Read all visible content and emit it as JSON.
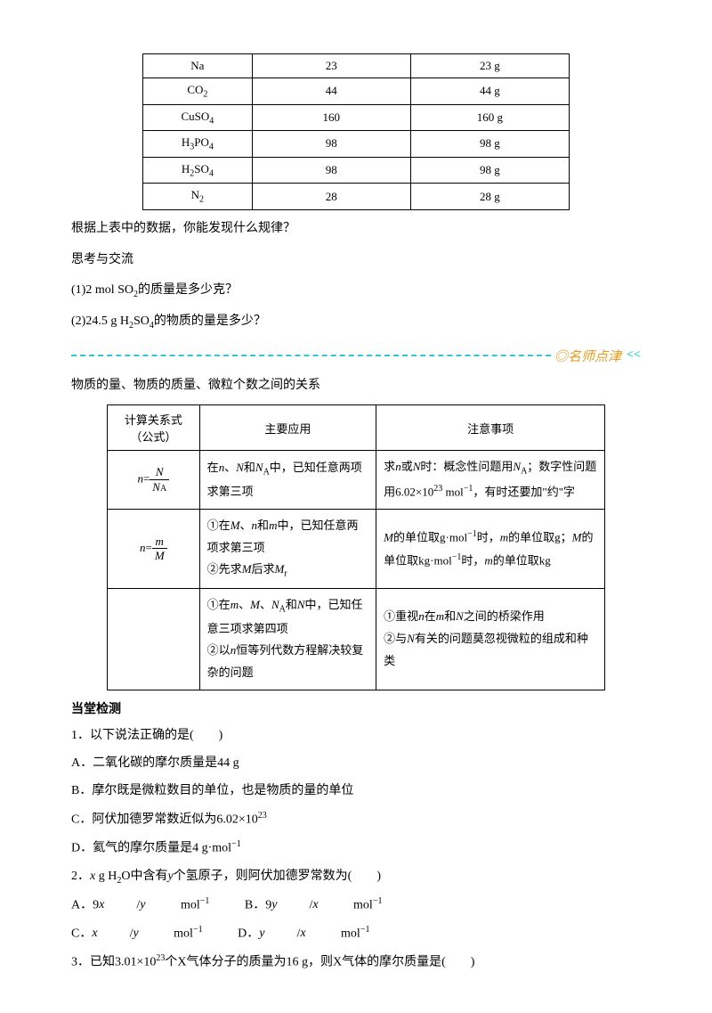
{
  "table1": {
    "rows": [
      {
        "substance_html": "Na",
        "mr": "23",
        "mass": "23 g"
      },
      {
        "substance_html": "CO<sub class='sub'>2</sub>",
        "mr": "44",
        "mass": "44 g"
      },
      {
        "substance_html": "CuSO<sub class='sub'>4</sub>",
        "mr": "160",
        "mass": "160 g"
      },
      {
        "substance_html": "H<sub class='sub'>3</sub>PO<sub class='sub'>4</sub>",
        "mr": "98",
        "mass": "98 g"
      },
      {
        "substance_html": "H<sub class='sub'>2</sub>SO<sub class='sub'>4</sub>",
        "mr": "98",
        "mass": "98 g"
      },
      {
        "substance_html": "N<sub class='sub'>2</sub>",
        "mr": "28",
        "mass": "28 g"
      }
    ]
  },
  "prompts": {
    "p1": "根据上表中的数据，你能发现什么规律？",
    "p2": "思考与交流",
    "p3_html": "(1)2 mol SO<sub class='sub'>2</sub>的质量是多少克？",
    "p4_html": "(2)24.5 g H<sub class='sub'>2</sub>SO<sub class='sub'>4</sub>的物质的量是多少？"
  },
  "divider_label": "◎名师点津",
  "relation_title": "物质的量、物质的质量、微粒个数之间的关系",
  "table2": {
    "headers": {
      "c1_line1": "计算关系式",
      "c1_line2": "（公式）",
      "c2": "主要应用",
      "c3": "注意事项"
    },
    "rows": [
      {
        "formula_html": "<span class='ital'>n</span>=<span class='frac'><span class='num'>N</span><span class='den'>N<span style=\"font-size:10px;font-style:normal\">A</span></span></span>",
        "app_html": "在<span class='ital'>n</span>、<span class='ital'>N</span>和<span class='ital'>N</span><sub class='sub'>A</sub>中，已知任意两项求第三项",
        "note_html": "求<span class='ital'>n</span>或<span class='ital'>N</span>时：概念性问题用<span class='ital'>N</span><sub class='sub'>A</sub>；数字性问题用6.02×10<sup class='sup'>23</sup> mol<sup class='sup'>−1</sup>，有时还要加\"约\"字"
      },
      {
        "formula_html": "<span class='ital'>n</span>=<span class='frac'><span class='num'>m</span><span class='den'>M</span></span>",
        "app_html": "①在<span class='ital'>M</span>、<span class='ital'>n</span>和<span class='ital'>m</span>中，已知任意两项求第三项<br>②先求<span class='ital'>M</span>后求<span class='ital'>M</span><sub class='sub'>r</sub>",
        "note_html": "<span class='ital'>M</span>的单位取g·mol<sup class='sup'>−1</sup>时，<span class='ital'>m</span>的单位取g；<span class='ital'>M</span>的单位取kg·mol<sup class='sup'>−1</sup>时，<span class='ital'>m</span>的单位取kg"
      },
      {
        "formula_html": "",
        "app_html": "①在<span class='ital'>m</span>、<span class='ital'>M</span>、<span class='ital'>N</span><sub class='sub'>A</sub>和<span class='ital'>N</span>中，已知任意三项求第四项<br>②以<span class='ital'>n</span>恒等列代数方程解决较复杂的问题",
        "note_html": "①重视<span class='ital'>n</span>在<span class='ital'>m</span>和<span class='ital'>N</span>之间的桥梁作用<br>②与<span class='ital'>N</span>有关的问题莫忽视微粒的组成和种类"
      }
    ]
  },
  "quiz": {
    "heading": "当堂检测",
    "q1": {
      "stem": "1．以下说法正确的是(　　)",
      "A": "A．二氧化碳的摩尔质量是44 g",
      "B": "B．摩尔既是微粒数目的单位，也是物质的量的单位",
      "C_html": "C．阿伏加德罗常数近似为6.02×10<sup class='sup'>23</sup>",
      "D_html": "D．氦气的摩尔质量是4 g·mol<sup class='sup'>−1</sup>"
    },
    "q2": {
      "stem_html": "2．<span class='ital'>x</span> g H<sub class='sub'>2</sub>O中含有<span class='ital'>y</span>个氢原子，则阿伏加德罗常数为(　　)",
      "A_html": "A．9<span class='ital'>x</span>/<span class='ital'>y</span> mol<sup class='sup'>−1</sup>",
      "B_html": "B．9<span class='ital'>y</span>/<span class='ital'>x</span> mol<sup class='sup'>−1</sup>",
      "C_html": "C．<span class='ital'>x</span>/<span class='ital'>y</span> mol<sup class='sup'>−1</sup>",
      "D_html": "D．<span class='ital'>y</span>/<span class='ital'>x</span> mol<sup class='sup'>−1</sup>"
    },
    "q3": {
      "stem_html": "3．已知3.01×10<sup class='sup'>23</sup>个X气体分子的质量为16 g，则X气体的摩尔质量是(　　)"
    }
  },
  "colors": {
    "divider_line": "#2fc9d6",
    "divider_text": "#e89b1e",
    "body_text": "#000000",
    "background": "#ffffff"
  }
}
